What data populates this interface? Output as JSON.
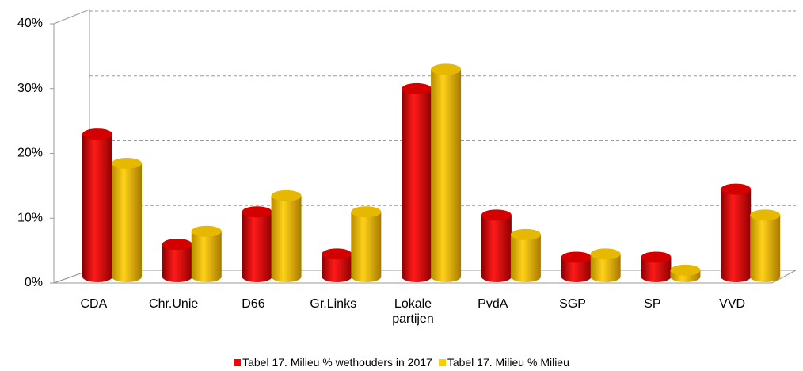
{
  "chart_data": {
    "type": "bar3d",
    "categories": [
      "CDA",
      "Chr.Unie",
      "D66",
      "Gr.Links",
      "Lokale partijen",
      "PvdA",
      "SGP",
      "SP",
      "VVD"
    ],
    "series": [
      {
        "name": "Tabel 17.  Milieu % wethouders in 2017",
        "color": "#ff0000",
        "values": [
          22,
          5,
          10,
          3.5,
          29,
          9.5,
          3,
          3,
          13.5
        ]
      },
      {
        "name": "Tabel 17.  Milieu % Milieu",
        "color": "#ffcc00",
        "values": [
          17.5,
          7,
          12.5,
          10,
          32,
          6.5,
          3.5,
          1,
          9.5
        ]
      }
    ],
    "ylim": [
      0,
      40
    ],
    "yticks": [
      {
        "value": 0,
        "label": "0%"
      },
      {
        "value": 10,
        "label": "10%"
      },
      {
        "value": 20,
        "label": "20%"
      },
      {
        "value": 30,
        "label": "30%"
      },
      {
        "value": 40,
        "label": "40%"
      }
    ],
    "grid": true
  }
}
